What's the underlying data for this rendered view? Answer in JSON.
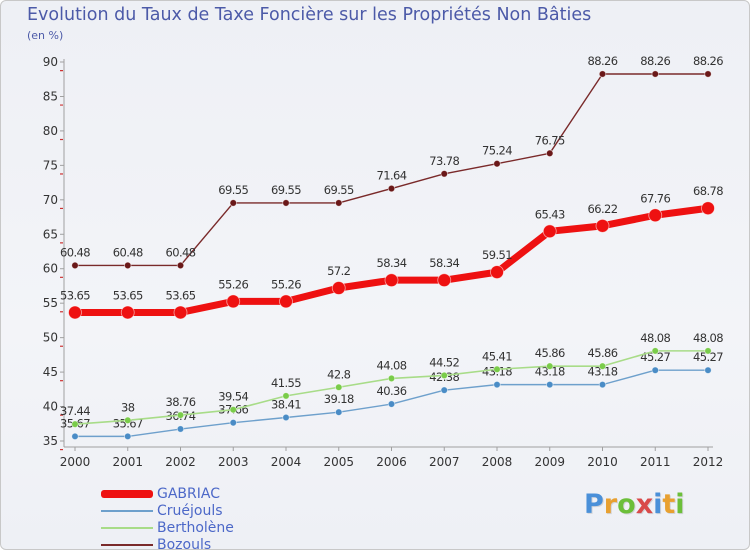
{
  "chart_data": {
    "type": "line",
    "title": "Evolution du Taux de Taxe Foncière sur les Propriétés Non Bâties",
    "ylabel": "(en %)",
    "xlabel": "",
    "categories": [
      "2000",
      "2001",
      "2002",
      "2003",
      "2004",
      "2005",
      "2006",
      "2007",
      "2008",
      "2009",
      "2010",
      "2011",
      "2012"
    ],
    "y_ticks": [
      35,
      40,
      45,
      50,
      55,
      60,
      65,
      70,
      75,
      80,
      85,
      90
    ],
    "ylim": [
      35,
      90
    ],
    "grid": false,
    "series": [
      {
        "name": "Bozouls",
        "color": "#7a2a2a",
        "marker": "#6a1818",
        "width": 1.4,
        "r": 3.3,
        "values": [
          60.48,
          60.48,
          60.48,
          69.55,
          69.55,
          69.55,
          71.64,
          73.78,
          75.24,
          76.75,
          88.26,
          88.26,
          88.26
        ],
        "labels": [
          "60.48",
          "60.48",
          "60.48",
          "69.55",
          "69.55",
          "69.55",
          "71.64",
          "73.78",
          "75.24",
          "76.75",
          "88.26",
          "88.26",
          "88.26"
        ]
      },
      {
        "name": "Cruéjouls",
        "color": "#6ea0cc",
        "marker": "#4a8cc6",
        "width": 1.4,
        "r": 3.3,
        "values": [
          35.67,
          35.67,
          36.74,
          37.66,
          38.41,
          39.18,
          40.36,
          42.38,
          43.18,
          43.18,
          43.18,
          45.27,
          45.27
        ],
        "labels": [
          "35.67",
          "35.67",
          "36.74",
          "37.66",
          "38.41",
          "39.18",
          "40.36",
          "42.38",
          "43.18",
          "43.18",
          "43.18",
          "45.27",
          "45.27"
        ]
      },
      {
        "name": "Bertholène",
        "color": "#a8dc88",
        "marker": "#7acc4a",
        "width": 1.6,
        "r": 3.3,
        "values": [
          37.44,
          38,
          38.76,
          39.54,
          41.55,
          42.8,
          44.08,
          44.52,
          45.41,
          45.86,
          45.86,
          48.08,
          48.08
        ],
        "labels": [
          "37.44",
          "38",
          "38.76",
          "39.54",
          "41.55",
          "42.8",
          "44.08",
          "44.52",
          "45.41",
          "45.86",
          "45.86",
          "48.08",
          "48.08"
        ]
      },
      {
        "name": "GABRIAC",
        "color": "#ee1111",
        "marker": "#ee1111",
        "width": 7,
        "r": 6.5,
        "values": [
          53.65,
          53.65,
          53.65,
          55.26,
          55.26,
          57.2,
          58.34,
          58.34,
          59.51,
          65.43,
          66.22,
          67.76,
          68.78
        ],
        "labels": [
          "53.65",
          "53.65",
          "53.65",
          "55.26",
          "55.26",
          "57.2",
          "58.34",
          "58.34",
          "59.51",
          "65.43",
          "66.22",
          "67.76",
          "68.78"
        ]
      }
    ],
    "legend": [
      {
        "name": "GABRIAC",
        "color": "#ee1111",
        "thickness": 8
      },
      {
        "name": "Cruéjouls",
        "color": "#6ea0cc",
        "thickness": 2
      },
      {
        "name": "Bertholène",
        "color": "#a8dc88",
        "thickness": 2
      },
      {
        "name": "Bozouls",
        "color": "#7a2a2a",
        "thickness": 2
      }
    ],
    "legend_position": "bottom-left"
  },
  "logo": {
    "letters": [
      "P",
      "r",
      "o",
      "x",
      "i",
      "t",
      "i"
    ],
    "colors": [
      "#4a90d9",
      "#e8a030",
      "#6cbf3a",
      "#d94a4a",
      "#4a90d9",
      "#e8a030",
      "#6cbf3a"
    ]
  }
}
